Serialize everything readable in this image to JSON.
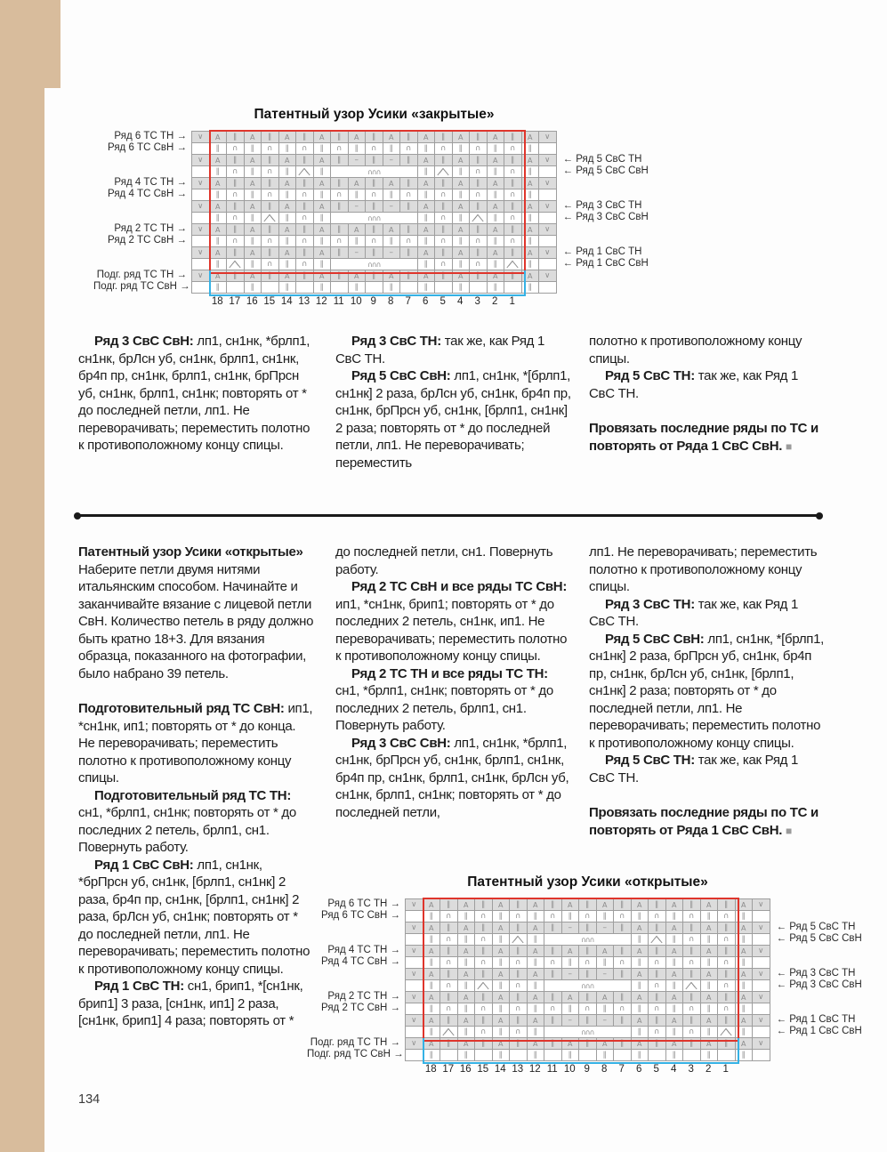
{
  "page": {
    "number": "134"
  },
  "colors": {
    "repeat_box": "#df352c",
    "caston_box": "#35b2e5",
    "page_edge": "#d8bc9c",
    "cell_shade": "#dcdcdc"
  },
  "charts": [
    {
      "title": "Патентный узор Усики «закрытые»",
      "left_labels": {
        "1": "Ряд 6 ТС ТН",
        "2": "Ряд 6 ТС СвН",
        "5": "Ряд 4 ТС ТН",
        "6": "Ряд 4 ТС СвН",
        "9": "Ряд 2 ТС ТН",
        "10": "Ряд 2 ТС СвН",
        "13": "Подг. ряд ТС ТН",
        "14": "Подг. ряд ТС СвН"
      },
      "right_labels": {
        "3": "Ряд 5 СвС ТН",
        "4": "Ряд 5 СвС СвН",
        "7": "Ряд 3 СвС ТН",
        "8": "Ряд 3 СвС СвН",
        "11": "Ряд 1 СвС ТН",
        "12": "Ряд 1 СвС СвН"
      },
      "column_numbers": [
        "18",
        "17",
        "16",
        "15",
        "14",
        "13",
        "12",
        "11",
        "10",
        "9",
        "8",
        "7",
        "6",
        "5",
        "4",
        "3",
        "2",
        "1"
      ],
      "rows": [
        [
          "v",
          "a",
          "ii",
          "a",
          "ii",
          "a",
          "ii",
          "a",
          "ii",
          "a",
          "ii",
          "a",
          "ii",
          "a",
          "ii",
          "a",
          "ii",
          "a",
          "ii",
          "a",
          "v"
        ],
        [
          "",
          "ii",
          "arc",
          "ii",
          "arc",
          "ii",
          "arc",
          "ii",
          "arc",
          "ii",
          "arc",
          "ii",
          "arc",
          "ii",
          "arc",
          "ii",
          "arc",
          "ii",
          "arc",
          "ii",
          ""
        ],
        [
          "v",
          "a",
          "ii",
          "a",
          "ii",
          "a",
          "ii",
          "a",
          "ii",
          "dash",
          "ii",
          "dash",
          "ii",
          "a",
          "ii",
          "a",
          "ii",
          "a",
          "ii",
          "a",
          "v"
        ],
        [
          "",
          "ii",
          "arc",
          "ii",
          "arc",
          "ii",
          "decR",
          "ii",
          "bob*5",
          "ii",
          "decL",
          "ii",
          "arc",
          "ii",
          "arc",
          "ii",
          ""
        ],
        [
          "v",
          "a",
          "ii",
          "a",
          "ii",
          "a",
          "ii",
          "a",
          "ii",
          "a",
          "ii",
          "a",
          "ii",
          "a",
          "ii",
          "a",
          "ii",
          "a",
          "ii",
          "a",
          "v"
        ],
        [
          "",
          "ii",
          "arc",
          "ii",
          "arc",
          "ii",
          "arc",
          "ii",
          "arc",
          "ii",
          "arc",
          "ii",
          "arc",
          "ii",
          "arc",
          "ii",
          "arc",
          "ii",
          "arc",
          "ii",
          ""
        ],
        [
          "v",
          "a",
          "ii",
          "a",
          "ii",
          "a",
          "ii",
          "a",
          "ii",
          "dash",
          "ii",
          "dash",
          "ii",
          "a",
          "ii",
          "a",
          "ii",
          "a",
          "ii",
          "a",
          "v"
        ],
        [
          "",
          "ii",
          "arc",
          "ii",
          "decR",
          "ii",
          "arc",
          "ii",
          "bob*5",
          "ii",
          "arc",
          "ii",
          "decL",
          "ii",
          "arc",
          "ii",
          ""
        ],
        [
          "v",
          "a",
          "ii",
          "a",
          "ii",
          "a",
          "ii",
          "a",
          "ii",
          "a",
          "ii",
          "a",
          "ii",
          "a",
          "ii",
          "a",
          "ii",
          "a",
          "ii",
          "a",
          "v"
        ],
        [
          "",
          "ii",
          "arc",
          "ii",
          "arc",
          "ii",
          "arc",
          "ii",
          "arc",
          "ii",
          "arc",
          "ii",
          "arc",
          "ii",
          "arc",
          "ii",
          "arc",
          "ii",
          "arc",
          "ii",
          ""
        ],
        [
          "v",
          "a",
          "ii",
          "a",
          "ii",
          "a",
          "ii",
          "a",
          "ii",
          "dash",
          "ii",
          "dash",
          "ii",
          "a",
          "ii",
          "a",
          "ii",
          "a",
          "ii",
          "a",
          "v"
        ],
        [
          "",
          "ii",
          "decR",
          "ii",
          "arc",
          "ii",
          "arc",
          "ii",
          "bob*5",
          "ii",
          "arc",
          "ii",
          "arc",
          "ii",
          "decL",
          "ii",
          ""
        ],
        [
          "v",
          "a",
          "ii",
          "a",
          "ii",
          "a",
          "ii",
          "a",
          "ii",
          "a",
          "ii",
          "a",
          "ii",
          "a",
          "ii",
          "a",
          "ii",
          "a",
          "ii",
          "a",
          "v"
        ],
        [
          "",
          "ii",
          "",
          "ii",
          "",
          "ii",
          "",
          "ii",
          "",
          "ii",
          "",
          "ii",
          "",
          "ii",
          "",
          "ii",
          "",
          "ii",
          "",
          "ii",
          ""
        ]
      ]
    },
    {
      "title": "Патентный узор Усики «открытые»",
      "left_labels": {
        "1": "Ряд 6 ТС ТН",
        "2": "Ряд 6 ТС СвН",
        "5": "Ряд 4 ТС ТН",
        "6": "Ряд 4 ТС СвН",
        "9": "Ряд 2 ТС ТН",
        "10": "Ряд 2 ТС СвН",
        "13": "Подг. ряд ТС ТН",
        "14": "Подг. ряд ТС СвН"
      },
      "right_labels": {
        "3": "Ряд 5 СвС ТН",
        "4": "Ряд 5 СвС СвН",
        "7": "Ряд 3 СвС ТН",
        "8": "Ряд 3 СвС СвН",
        "11": "Ряд 1 СвС ТН",
        "12": "Ряд 1 СвС СвН"
      },
      "column_numbers": [
        "18",
        "17",
        "16",
        "15",
        "14",
        "13",
        "12",
        "11",
        "10",
        "9",
        "8",
        "7",
        "6",
        "5",
        "4",
        "3",
        "2",
        "1"
      ],
      "rows": [
        [
          "v",
          "a",
          "ii",
          "a",
          "ii",
          "a",
          "ii",
          "a",
          "ii",
          "a",
          "ii",
          "a",
          "ii",
          "a",
          "ii",
          "a",
          "ii",
          "a",
          "ii",
          "a",
          "v"
        ],
        [
          "",
          "ii",
          "arc",
          "ii",
          "arc",
          "ii",
          "arc",
          "ii",
          "arc",
          "ii",
          "arc",
          "ii",
          "arc",
          "ii",
          "arc",
          "ii",
          "arc",
          "ii",
          "arc",
          "ii",
          ""
        ],
        [
          "v",
          "a",
          "ii",
          "a",
          "ii",
          "a",
          "ii",
          "a",
          "ii",
          "dash",
          "ii",
          "dash",
          "ii",
          "a",
          "ii",
          "a",
          "ii",
          "a",
          "ii",
          "a",
          "v"
        ],
        [
          "",
          "ii",
          "arc",
          "ii",
          "arc",
          "ii",
          "decL",
          "ii",
          "bob*5",
          "ii",
          "decR",
          "ii",
          "arc",
          "ii",
          "arc",
          "ii",
          ""
        ],
        [
          "v",
          "a",
          "ii",
          "a",
          "ii",
          "a",
          "ii",
          "a",
          "ii",
          "a",
          "ii",
          "a",
          "ii",
          "a",
          "ii",
          "a",
          "ii",
          "a",
          "ii",
          "a",
          "v"
        ],
        [
          "",
          "ii",
          "arc",
          "ii",
          "arc",
          "ii",
          "arc",
          "ii",
          "arc",
          "ii",
          "arc",
          "ii",
          "arc",
          "ii",
          "arc",
          "ii",
          "arc",
          "ii",
          "arc",
          "ii",
          ""
        ],
        [
          "v",
          "a",
          "ii",
          "a",
          "ii",
          "a",
          "ii",
          "a",
          "ii",
          "dash",
          "ii",
          "dash",
          "ii",
          "a",
          "ii",
          "a",
          "ii",
          "a",
          "ii",
          "a",
          "v"
        ],
        [
          "",
          "ii",
          "arc",
          "ii",
          "decL",
          "ii",
          "arc",
          "ii",
          "bob*5",
          "ii",
          "arc",
          "ii",
          "decR",
          "ii",
          "arc",
          "ii",
          ""
        ],
        [
          "v",
          "a",
          "ii",
          "a",
          "ii",
          "a",
          "ii",
          "a",
          "ii",
          "a",
          "ii",
          "a",
          "ii",
          "a",
          "ii",
          "a",
          "ii",
          "a",
          "ii",
          "a",
          "v"
        ],
        [
          "",
          "ii",
          "arc",
          "ii",
          "arc",
          "ii",
          "arc",
          "ii",
          "arc",
          "ii",
          "arc",
          "ii",
          "arc",
          "ii",
          "arc",
          "ii",
          "arc",
          "ii",
          "arc",
          "ii",
          ""
        ],
        [
          "v",
          "a",
          "ii",
          "a",
          "ii",
          "a",
          "ii",
          "a",
          "ii",
          "dash",
          "ii",
          "dash",
          "ii",
          "a",
          "ii",
          "a",
          "ii",
          "a",
          "ii",
          "a",
          "v"
        ],
        [
          "",
          "ii",
          "decL",
          "ii",
          "arc",
          "ii",
          "arc",
          "ii",
          "bob*5",
          "ii",
          "arc",
          "ii",
          "arc",
          "ii",
          "decR",
          "ii",
          ""
        ],
        [
          "v",
          "a",
          "ii",
          "a",
          "ii",
          "a",
          "ii",
          "a",
          "ii",
          "a",
          "ii",
          "a",
          "ii",
          "a",
          "ii",
          "a",
          "ii",
          "a",
          "ii",
          "a",
          "v"
        ],
        [
          "",
          "ii",
          "",
          "ii",
          "",
          "ii",
          "",
          "ii",
          "",
          "ii",
          "",
          "ii",
          "",
          "ii",
          "",
          "ii",
          "",
          "ii",
          "",
          "ii",
          ""
        ]
      ]
    }
  ],
  "sections": [
    {
      "columns": [
        {
          "paragraphs": [
            {
              "style": "ind",
              "runs": [
                [
                  "b",
                  "Ряд 3 СвС СвН:"
                ],
                [
                  "t",
                  " лп1, сн1нк, *брлп1, сн1нк, брЛсн уб, сн1нк, брлп1, сн1нк, бр4п пр, сн1нк, брлп1, сн1нк, брПрсн уб, сн1нк, брлп1, сн1нк; повторять от * до последней петли, лп1. Не переворачивать; переместить полотно к противоположному концу спицы."
                ]
              ]
            }
          ]
        },
        {
          "paragraphs": [
            {
              "style": "ind",
              "runs": [
                [
                  "b",
                  "Ряд 3 СвС ТН:"
                ],
                [
                  "t",
                  " так же, как Ряд 1 СвС ТН."
                ]
              ]
            },
            {
              "style": "ind",
              "runs": [
                [
                  "b",
                  "Ряд 5 СвС СвН:"
                ],
                [
                  "t",
                  " лп1, сн1нк, *[брлп1, сн1нк] 2 раза, брЛсн уб, сн1нк, бр4п пр, сн1нк, брПрсн уб, сн1нк, [брлп1, сн1нк] 2 раза; повторять от * до последней петли, лп1. Не переворачивать; переместить"
                ]
              ]
            }
          ]
        },
        {
          "paragraphs": [
            {
              "style": "",
              "runs": [
                [
                  "t",
                  "полотно к противоположному концу спицы."
                ]
              ]
            },
            {
              "style": "ind",
              "runs": [
                [
                  "b",
                  "Ряд 5 СвС ТН:"
                ],
                [
                  "t",
                  " так же, как Ряд 1 СвС ТН."
                ]
              ]
            },
            {
              "style": "gap",
              "runs": [
                [
                  "b",
                  "Провязать последние ряды по ТС и повторять от Ряда 1 СвС СвН. "
                ],
                [
                  "sq",
                  "■"
                ]
              ]
            }
          ]
        }
      ]
    },
    {
      "columns": [
        {
          "paragraphs": [
            {
              "style": "head",
              "runs": [
                [
                  "b",
                  "Патентный узор Усики «открытые»"
                ]
              ]
            },
            {
              "style": "",
              "runs": [
                [
                  "t",
                  "Наберите петли двумя нитями итальянским способом. Начинайте и заканчивайте вязание с лицевой петли СвН. Количество петель в ряду должно быть кратно 18+3. Для вязания образца, показанного на фотографии, было набрано 39 петель."
                ]
              ]
            },
            {
              "style": "gap",
              "runs": [
                [
                  "b",
                  "Подготовительный ряд ТС СвН:"
                ],
                [
                  "t",
                  " ип1, *сн1нк, ип1; повторять от * до конца. Не переворачивать; переместить полотно к противоположному концу спицы."
                ]
              ]
            },
            {
              "style": "ind",
              "runs": [
                [
                  "b",
                  "Подготовительный ряд ТС ТН:"
                ],
                [
                  "t",
                  " сн1, *брлп1, сн1нк; повторять от * до последних 2 петель, брлп1, сн1. Повернуть работу."
                ]
              ]
            },
            {
              "style": "ind",
              "runs": [
                [
                  "b",
                  "Ряд 1 СвС СвН:"
                ],
                [
                  "t",
                  " лп1, сн1нк, *брПрсн уб, сн1нк, [брлп1, сн1нк] 2 раза, бр4п пр, сн1нк, [брлп1, сн1нк] 2 раза, брЛсн уб, сн1нк; повторять от * до последней петли, лп1. Не переворачивать; переместить полотно к противоположному концу спицы."
                ]
              ]
            },
            {
              "style": "ind",
              "runs": [
                [
                  "b",
                  "Ряд 1 СвС ТН:"
                ],
                [
                  "t",
                  " сн1, брип1, *[сн1нк, брип1] 3 раза, [сн1нк, ип1] 2 раза, [сн1нк, брип1] 4 раза; повторять от *"
                ]
              ]
            }
          ]
        },
        {
          "paragraphs": [
            {
              "style": "",
              "runs": [
                [
                  "t",
                  "до последней петли, сн1. Повернуть работу."
                ]
              ]
            },
            {
              "style": "ind",
              "runs": [
                [
                  "b",
                  "Ряд 2 ТС СвН и все ряды ТС СвН:"
                ],
                [
                  "t",
                  " ип1, *сн1нк, брип1; повторять от * до последних 2 петель, сн1нк, ип1. Не переворачивать; переместить полотно к противоположному концу спицы."
                ]
              ]
            },
            {
              "style": "ind",
              "runs": [
                [
                  "b",
                  "Ряд 2 ТС ТН и все ряды ТС ТН:"
                ],
                [
                  "t",
                  " сн1, *брлп1, сн1нк; повторять от * до последних 2 петель, брлп1, сн1. Повернуть работу."
                ]
              ]
            },
            {
              "style": "ind",
              "runs": [
                [
                  "b",
                  "Ряд 3 СвС СвН:"
                ],
                [
                  "t",
                  " лп1, сн1нк, *брлп1, сн1нк, брПрсн уб, сн1нк, брлп1, сн1нк, бр4п пр, сн1нк, брлп1, сн1нк, брЛсн уб, сн1нк, брлп1, сн1нк; повторять от * до последней петли,"
                ]
              ]
            }
          ]
        },
        {
          "paragraphs": [
            {
              "style": "",
              "runs": [
                [
                  "t",
                  "лп1. Не переворачивать; переместить полотно к противоположному концу спицы."
                ]
              ]
            },
            {
              "style": "ind",
              "runs": [
                [
                  "b",
                  "Ряд 3 СвС ТН:"
                ],
                [
                  "t",
                  " так же, как Ряд 1 СвС ТН."
                ]
              ]
            },
            {
              "style": "ind",
              "runs": [
                [
                  "b",
                  "Ряд 5 СвС СвН:"
                ],
                [
                  "t",
                  " лп1, сн1нк, *[брлп1, сн1нк] 2 раза, брПрсн уб, сн1нк, бр4п пр, сн1нк, брЛсн уб, сн1нк, [брлп1, сн1нк] 2 раза; повторять от * до последней петли, лп1. Не переворачивать; переместить полотно к противоположному концу спицы."
                ]
              ]
            },
            {
              "style": "ind",
              "runs": [
                [
                  "b",
                  "Ряд 5 СвС ТН:"
                ],
                [
                  "t",
                  " так же, как Ряд 1 СвС ТН."
                ]
              ]
            },
            {
              "style": "gap",
              "runs": [
                [
                  "b",
                  "Провязать последние ряды по ТС и повторять от Ряда 1 СвС СвН. "
                ],
                [
                  "sq",
                  "■"
                ]
              ]
            }
          ]
        }
      ]
    }
  ]
}
